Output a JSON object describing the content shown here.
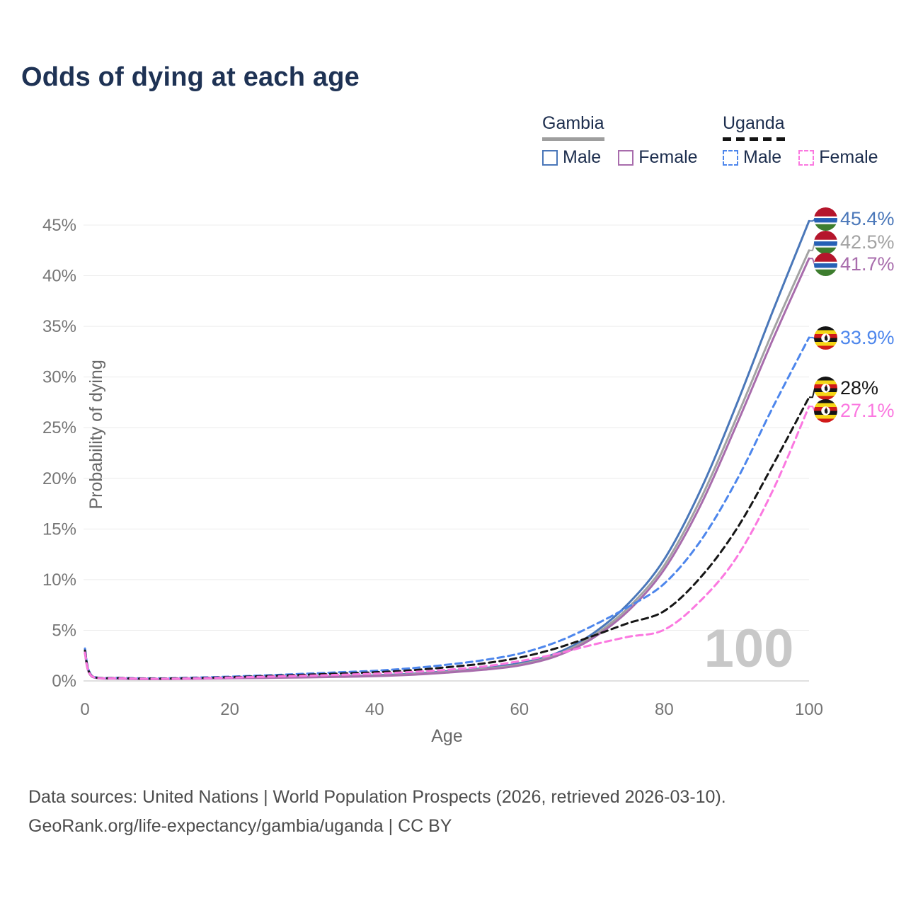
{
  "title": "Odds of dying at each age",
  "legend": {
    "groups": [
      {
        "name": "Gambia",
        "line_style": "solid",
        "line_color": "#9e9e9e",
        "items": [
          {
            "label": "Male",
            "color": "#4a77b9",
            "style": "solid"
          },
          {
            "label": "Female",
            "color": "#a86cac",
            "style": "solid"
          }
        ]
      },
      {
        "name": "Uganda",
        "line_style": "dashed",
        "line_color": "#141414",
        "items": [
          {
            "label": "Male",
            "color": "#4d86ec",
            "style": "dashed"
          },
          {
            "label": "Female",
            "color": "#fb78e0",
            "style": "dashed"
          }
        ]
      }
    ]
  },
  "chart_data": {
    "type": "line",
    "title": "Odds of dying at each age",
    "xlabel": "Age",
    "ylabel": "Probability of dying",
    "xlim": [
      0,
      100
    ],
    "ylim": [
      0,
      45
    ],
    "x_ticks": [
      0,
      20,
      40,
      60,
      80,
      100
    ],
    "y_ticks": [
      0,
      5,
      10,
      15,
      20,
      25,
      30,
      35,
      40,
      45
    ],
    "y_tick_labels": [
      "0%",
      "5%",
      "10%",
      "15%",
      "20%",
      "25%",
      "30%",
      "35%",
      "40%",
      "45%"
    ],
    "grid": "horizontal",
    "legend_position": "top-right",
    "watermark": "100",
    "x": [
      0,
      1,
      5,
      10,
      15,
      20,
      25,
      30,
      35,
      40,
      45,
      50,
      55,
      60,
      65,
      70,
      75,
      80,
      85,
      90,
      95,
      100
    ],
    "series": [
      {
        "name": "Gambia Male",
        "country": "Gambia",
        "sex": "Male",
        "color": "#4a77b9",
        "style": "solid",
        "flag": "gambia",
        "end_label": "45.4%",
        "values": [
          3.1,
          0.45,
          0.25,
          0.2,
          0.25,
          0.3,
          0.35,
          0.4,
          0.45,
          0.55,
          0.7,
          0.95,
          1.25,
          1.75,
          2.7,
          4.6,
          7.6,
          12.0,
          18.8,
          27.3,
          36.5,
          45.4
        ]
      },
      {
        "name": "Gambia Both sexes",
        "country": "Gambia",
        "sex": "Both",
        "color": "#a3a3a3",
        "style": "solid",
        "flag": "gambia",
        "end_label": "42.5%",
        "values": [
          2.9,
          0.42,
          0.23,
          0.19,
          0.23,
          0.28,
          0.32,
          0.37,
          0.42,
          0.5,
          0.65,
          0.88,
          1.18,
          1.62,
          2.55,
          4.35,
          7.2,
          11.4,
          17.9,
          26.0,
          34.5,
          42.5
        ]
      },
      {
        "name": "Gambia Female",
        "country": "Gambia",
        "sex": "Female",
        "color": "#a86cac",
        "style": "solid",
        "flag": "gambia",
        "end_label": "41.7%",
        "values": [
          2.7,
          0.4,
          0.22,
          0.18,
          0.21,
          0.26,
          0.3,
          0.34,
          0.4,
          0.47,
          0.6,
          0.82,
          1.1,
          1.52,
          2.42,
          4.15,
          6.9,
          11.0,
          17.3,
          25.3,
          33.7,
          41.7
        ]
      },
      {
        "name": "Uganda Male",
        "country": "Uganda",
        "sex": "Male",
        "color": "#4d86ec",
        "style": "dashed",
        "flag": "uganda",
        "end_label": "33.9%",
        "values": [
          3.2,
          0.5,
          0.3,
          0.25,
          0.32,
          0.42,
          0.55,
          0.7,
          0.85,
          1.0,
          1.25,
          1.6,
          2.05,
          2.7,
          3.8,
          5.4,
          7.3,
          9.6,
          13.8,
          19.8,
          27.0,
          33.9
        ]
      },
      {
        "name": "Uganda Both sexes",
        "country": "Uganda",
        "sex": "Both",
        "color": "#161616",
        "style": "dashed",
        "flag": "uganda",
        "end_label": "28%",
        "values": [
          3.0,
          0.47,
          0.28,
          0.23,
          0.28,
          0.37,
          0.48,
          0.6,
          0.72,
          0.85,
          1.05,
          1.35,
          1.72,
          2.3,
          3.2,
          4.4,
          5.7,
          6.9,
          10.2,
          15.0,
          21.3,
          28.0
        ]
      },
      {
        "name": "Uganda Female",
        "country": "Uganda",
        "sex": "Female",
        "color": "#fb78e0",
        "style": "dashed",
        "flag": "uganda",
        "end_label": "27.1%",
        "values": [
          2.8,
          0.44,
          0.26,
          0.21,
          0.25,
          0.33,
          0.42,
          0.5,
          0.6,
          0.72,
          0.88,
          1.1,
          1.42,
          1.95,
          2.65,
          3.55,
          4.35,
          5.05,
          7.9,
          12.2,
          18.8,
          27.1
        ]
      }
    ]
  },
  "footer": {
    "line1": "Data sources: United Nations | World Population Prospects (2026, retrieved 2026-03-10).",
    "line2": "GeoRank.org/life-expectancy/gambia/uganda | CC BY"
  }
}
